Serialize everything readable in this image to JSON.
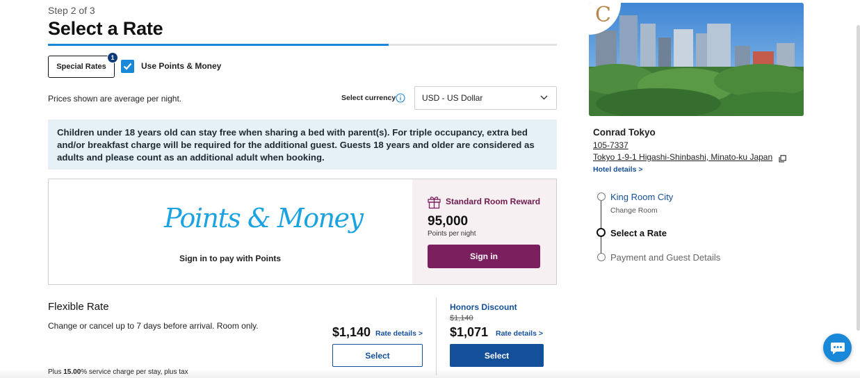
{
  "header": {
    "step": "Step 2 of 3",
    "title": "Select a Rate",
    "progress_fraction": 0.67
  },
  "filters": {
    "special_rates_label": "Special Rates",
    "special_rates_count": "1",
    "points_money_label": "Use Points & Money",
    "points_money_checked": true
  },
  "pricing": {
    "note": "Prices shown are average per night.",
    "currency_label": "Select currency",
    "currency_value": "USD - US Dollar"
  },
  "notice": {
    "text": "Children under 18 years old can stay free when sharing a bed with parent(s). For triple occupancy, extra bed and/or breakfast charge will be required for the additional guest. Guests 18 years and older are considered as adults and please count as an additional adult when booking."
  },
  "points_money": {
    "logo_text": "Points & Money",
    "subtitle": "Sign in to pay with Points",
    "reward_title": "Standard Room Reward",
    "points": "95,000",
    "points_sub": "Points per night",
    "signin_label": "Sign in"
  },
  "flexible_rate": {
    "title": "Flexible Rate",
    "description": "Change or cancel up to 7 days before arrival. Room only.",
    "price": "$1,140",
    "rate_details": "Rate details >",
    "select_label": "Select",
    "honors_title": "Honors Discount",
    "honors_original": "$1,140",
    "honors_price": "$1,071",
    "honors_rate_details": "Rate details >",
    "honors_select_label": "Select",
    "service_note_prefix": "Plus ",
    "service_note_pct": "15.00",
    "service_note_suffix": "% service charge per stay, plus tax"
  },
  "hotel": {
    "logo_letter": "C",
    "name": "Conrad Tokyo",
    "phone": "105-7337",
    "address": "Tokyo 1-9-1 Higashi-Shinbashi, Minato-ku Japan",
    "details_link": "Hotel details >"
  },
  "booking_steps": [
    {
      "label": "King Room City",
      "sub": "Change Room"
    },
    {
      "label": "Select a Rate"
    },
    {
      "label": "Payment and Guest Details"
    }
  ],
  "colors": {
    "accent_blue": "#1a88d9",
    "link_blue": "#14509a",
    "reward_purple": "#7a1e5e",
    "notice_bg": "#e6f1f7"
  },
  "icons": {
    "info": "info-icon",
    "chevron": "chevron-down-icon",
    "gift": "gift-icon",
    "external": "external-link-icon",
    "chat": "chat-icon"
  }
}
